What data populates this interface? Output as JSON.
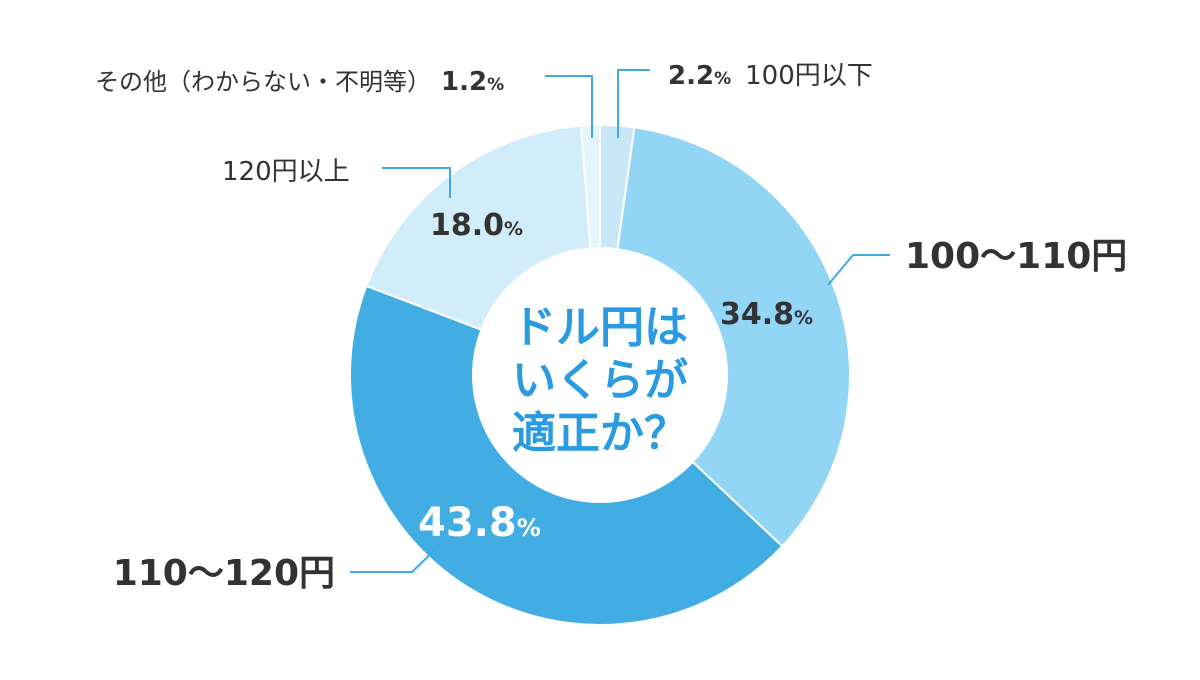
{
  "chart_data": {
    "type": "pie",
    "title_lines": [
      "ドル円は",
      "いくらが",
      "適正か？"
    ],
    "slices": [
      {
        "label": "100円以下",
        "value": 2.2,
        "display": "2.2",
        "color": "#c9e8f7"
      },
      {
        "label": "100～110円",
        "value": 34.8,
        "display": "34.8",
        "color": "#92d5f4"
      },
      {
        "label": "110～120円",
        "value": 43.8,
        "display": "43.8",
        "color": "#41ade3"
      },
      {
        "label": "120円以上",
        "value": 18.0,
        "display": "18.0",
        "color": "#d1edf9"
      },
      {
        "label": "その他（わからない・不明等）",
        "value": 1.2,
        "display": "1.2",
        "color": "#e3f4fb"
      }
    ],
    "percent_suffix": "%"
  }
}
